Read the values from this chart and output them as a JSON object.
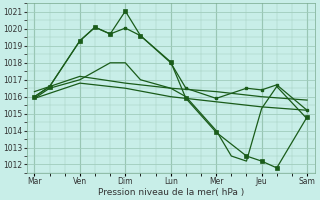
{
  "title": "Pression niveau de la mer( hPa )",
  "bg_color": "#c8eee8",
  "grid_color": "#a0ccbc",
  "line_color": "#1a5c1a",
  "ylim": [
    1011.5,
    1021.5
  ],
  "yticks": [
    1012,
    1013,
    1014,
    1015,
    1016,
    1017,
    1018,
    1019,
    1020,
    1021
  ],
  "x_labels": [
    "Mar",
    "Ven",
    "Dim",
    "Lun",
    "Mer",
    "Jeu",
    "Sam"
  ],
  "x_ticks": [
    0,
    3,
    6,
    9,
    12,
    15,
    18
  ],
  "x_minor_ticks": [
    0,
    1,
    2,
    3,
    4,
    5,
    6,
    7,
    8,
    9,
    10,
    11,
    12,
    13,
    14,
    15,
    16,
    17,
    18
  ],
  "xlim": [
    -0.5,
    18.5
  ],
  "line1_x": [
    0,
    1,
    3,
    4,
    5,
    6,
    7,
    9,
    10,
    12,
    14,
    15,
    16,
    18
  ],
  "line1_y": [
    1016.0,
    1016.6,
    1019.3,
    1020.1,
    1019.7,
    1020.05,
    1019.6,
    1018.0,
    1016.5,
    1015.9,
    1016.5,
    1016.4,
    1016.7,
    1015.2
  ],
  "line_jagged_x": [
    0,
    1,
    3,
    4,
    5,
    6,
    7,
    9,
    10,
    12,
    14,
    15,
    16,
    18
  ],
  "line_jagged_y": [
    1016.0,
    1016.6,
    1019.3,
    1020.1,
    1019.7,
    1021.05,
    1019.6,
    1018.05,
    1015.9,
    1013.9,
    1012.5,
    1012.2,
    1011.8,
    1014.8
  ],
  "line_smooth1_x": [
    0,
    3,
    6,
    9,
    12,
    15,
    18
  ],
  "line_smooth1_y": [
    1016.3,
    1017.2,
    1016.8,
    1016.5,
    1016.3,
    1016.0,
    1015.8
  ],
  "line_smooth2_x": [
    0,
    3,
    6,
    9,
    12,
    15,
    18
  ],
  "line_smooth2_y": [
    1015.9,
    1016.8,
    1016.5,
    1016.0,
    1015.7,
    1015.4,
    1015.2
  ],
  "line_bottom_x": [
    0,
    1,
    3,
    4,
    5,
    6,
    7,
    9,
    10,
    11,
    12,
    13,
    14,
    15,
    16,
    18
  ],
  "line_bottom_y": [
    1015.9,
    1016.5,
    1017.0,
    1017.5,
    1018.0,
    1018.0,
    1017.0,
    1016.5,
    1016.0,
    1015.0,
    1014.0,
    1012.5,
    1012.2,
    1015.3,
    1016.6,
    1014.7
  ]
}
